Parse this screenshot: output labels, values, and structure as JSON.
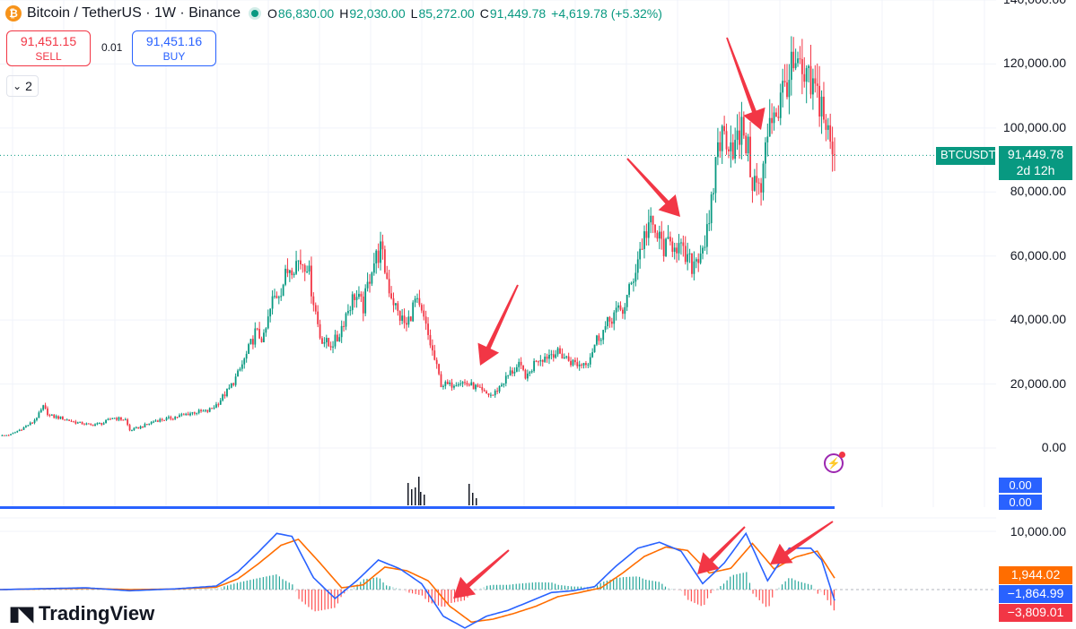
{
  "header": {
    "symbol_title": "Bitcoin / TetherUS · 1W · Binance",
    "open_label": "O",
    "open": "86,830.00",
    "high_label": "H",
    "high": "92,030.00",
    "low_label": "L",
    "low": "85,272.00",
    "close_label": "C",
    "close": "91,449.78",
    "change": "+4,619.78 (+5.32%)"
  },
  "trade": {
    "sell_price": "91,451.15",
    "sell_label": "SELL",
    "spread": "0.01",
    "buy_price": "91,451.16",
    "buy_label": "BUY"
  },
  "collapse_count": "2",
  "price_axis": {
    "ticks": [
      {
        "label": "140,000.00",
        "value": 140000
      },
      {
        "label": "120,000.00",
        "value": 120000
      },
      {
        "label": "100,000.00",
        "value": 100000
      },
      {
        "label": "80,000.00",
        "value": 80000
      },
      {
        "label": "60,000.00",
        "value": 60000
      },
      {
        "label": "40,000.00",
        "value": 40000
      },
      {
        "label": "20,000.00",
        "value": 20000
      },
      {
        "label": "0.00",
        "value": 0
      }
    ]
  },
  "last_price_tag": {
    "symbol": "BTCUSDT",
    "price": "91,449.78",
    "countdown": "2d 12h",
    "value": 91449.78
  },
  "volume_pane": {
    "label_top": "0.00",
    "label_bottom": "0.00"
  },
  "macd_pane": {
    "tick_label": "10,000.00",
    "tick_value": 10000,
    "tag_signal": "1,944.02",
    "tag_macd": "−1,864.99",
    "tag_hist": "−3,809.01"
  },
  "branding": "TradingView",
  "colors": {
    "up": "#089981",
    "down": "#f23645",
    "macd": "#2962ff",
    "signal": "#ff6d00",
    "arrow": "#f23645"
  },
  "chart_data": {
    "type": "candlestick",
    "interval": "1W",
    "ylim": [
      0,
      140000
    ],
    "close_points": [
      [
        0,
        3800
      ],
      [
        5,
        4200
      ],
      [
        10,
        6000
      ],
      [
        15,
        8000
      ],
      [
        18,
        10500
      ],
      [
        20,
        12800
      ],
      [
        23,
        10000
      ],
      [
        28,
        9400
      ],
      [
        35,
        8000
      ],
      [
        42,
        7200
      ],
      [
        48,
        7800
      ],
      [
        52,
        9500
      ],
      [
        58,
        8800
      ],
      [
        60,
        5500
      ],
      [
        66,
        6800
      ],
      [
        72,
        8600
      ],
      [
        78,
        9200
      ],
      [
        84,
        10200
      ],
      [
        90,
        11200
      ],
      [
        96,
        11500
      ],
      [
        100,
        13500
      ],
      [
        106,
        18500
      ],
      [
        110,
        23000
      ],
      [
        114,
        29000
      ],
      [
        118,
        36000
      ],
      [
        122,
        34000
      ],
      [
        126,
        46000
      ],
      [
        130,
        50000
      ],
      [
        134,
        57000
      ],
      [
        138,
        58500
      ],
      [
        142,
        58000
      ],
      [
        144,
        50000
      ],
      [
        148,
        35000
      ],
      [
        152,
        32000
      ],
      [
        156,
        34000
      ],
      [
        160,
        42000
      ],
      [
        164,
        48000
      ],
      [
        168,
        44000
      ],
      [
        172,
        57000
      ],
      [
        176,
        62000
      ],
      [
        180,
        50000
      ],
      [
        184,
        42000
      ],
      [
        188,
        38000
      ],
      [
        192,
        46000
      ],
      [
        196,
        40000
      ],
      [
        200,
        30000
      ],
      [
        204,
        20000
      ],
      [
        208,
        19500
      ],
      [
        212,
        21000
      ],
      [
        216,
        20000
      ],
      [
        220,
        19000
      ],
      [
        224,
        17000
      ],
      [
        228,
        16500
      ],
      [
        232,
        20000
      ],
      [
        236,
        23500
      ],
      [
        240,
        25500
      ],
      [
        244,
        22000
      ],
      [
        248,
        28000
      ],
      [
        252,
        28500
      ],
      [
        256,
        30000
      ],
      [
        260,
        29000
      ],
      [
        264,
        27000
      ],
      [
        268,
        26000
      ],
      [
        272,
        27500
      ],
      [
        276,
        34000
      ],
      [
        280,
        37500
      ],
      [
        284,
        42000
      ],
      [
        288,
        43000
      ],
      [
        292,
        51000
      ],
      [
        296,
        62000
      ],
      [
        300,
        70000
      ],
      [
        304,
        66000
      ],
      [
        308,
        62000
      ],
      [
        312,
        65000
      ],
      [
        316,
        60000
      ],
      [
        320,
        57000
      ],
      [
        324,
        62000
      ],
      [
        328,
        68000
      ],
      [
        332,
        96000
      ],
      [
        336,
        98000
      ],
      [
        340,
        94000
      ],
      [
        344,
        100000
      ],
      [
        348,
        84000
      ],
      [
        352,
        80000
      ],
      [
        356,
        105000
      ],
      [
        360,
        106000
      ],
      [
        364,
        116000
      ],
      [
        368,
        118000
      ],
      [
        372,
        114000
      ],
      [
        376,
        112000
      ],
      [
        380,
        108000
      ],
      [
        384,
        94000
      ],
      [
        386,
        91450
      ]
    ],
    "macd_points": [
      [
        0,
        0
      ],
      [
        20,
        150
      ],
      [
        40,
        300
      ],
      [
        60,
        -200
      ],
      [
        80,
        100
      ],
      [
        100,
        600
      ],
      [
        110,
        3000
      ],
      [
        120,
        6500
      ],
      [
        128,
        9500
      ],
      [
        135,
        9000
      ],
      [
        145,
        2000
      ],
      [
        155,
        -1500
      ],
      [
        165,
        1500
      ],
      [
        175,
        5000
      ],
      [
        185,
        3500
      ],
      [
        195,
        1000
      ],
      [
        205,
        -4500
      ],
      [
        215,
        -6500
      ],
      [
        225,
        -4500
      ],
      [
        235,
        -3500
      ],
      [
        245,
        -2000
      ],
      [
        255,
        -500
      ],
      [
        265,
        -200
      ],
      [
        275,
        500
      ],
      [
        285,
        4000
      ],
      [
        295,
        7000
      ],
      [
        305,
        8000
      ],
      [
        315,
        6500
      ],
      [
        325,
        1000
      ],
      [
        335,
        4500
      ],
      [
        345,
        9500
      ],
      [
        355,
        1500
      ],
      [
        365,
        7000
      ],
      [
        375,
        7000
      ],
      [
        380,
        5000
      ],
      [
        386,
        -1865
      ]
    ],
    "signal_points": [
      [
        0,
        0
      ],
      [
        20,
        120
      ],
      [
        40,
        200
      ],
      [
        60,
        0
      ],
      [
        80,
        80
      ],
      [
        100,
        400
      ],
      [
        110,
        1800
      ],
      [
        120,
        4500
      ],
      [
        130,
        7500
      ],
      [
        138,
        8500
      ],
      [
        148,
        4500
      ],
      [
        158,
        300
      ],
      [
        168,
        800
      ],
      [
        178,
        3800
      ],
      [
        188,
        3200
      ],
      [
        198,
        1500
      ],
      [
        208,
        -2800
      ],
      [
        218,
        -5500
      ],
      [
        228,
        -5000
      ],
      [
        238,
        -4000
      ],
      [
        248,
        -2800
      ],
      [
        258,
        -1200
      ],
      [
        268,
        -500
      ],
      [
        278,
        300
      ],
      [
        288,
        2800
      ],
      [
        298,
        5600
      ],
      [
        308,
        7200
      ],
      [
        318,
        6600
      ],
      [
        328,
        2800
      ],
      [
        338,
        3600
      ],
      [
        348,
        7800
      ],
      [
        358,
        3500
      ],
      [
        368,
        5500
      ],
      [
        378,
        6500
      ],
      [
        386,
        1944
      ]
    ]
  }
}
